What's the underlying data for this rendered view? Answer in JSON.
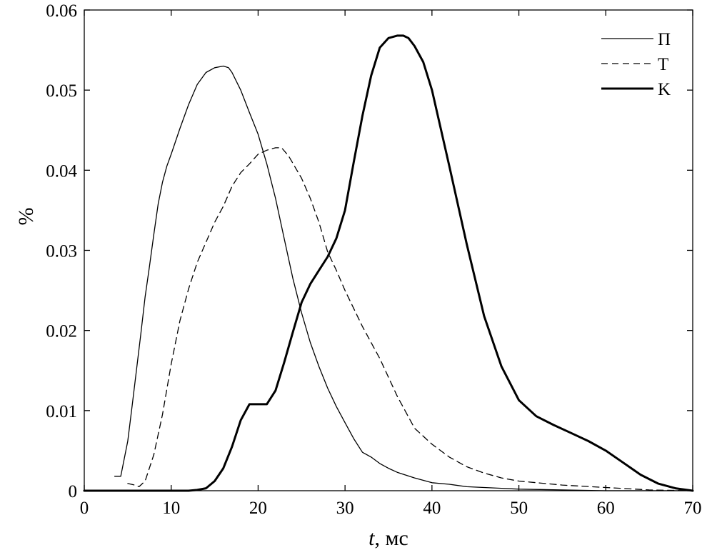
{
  "chart_data": {
    "type": "line",
    "title": "",
    "xlabel_italic": "t",
    "xlabel_rest": ", мс",
    "ylabel": "%",
    "xlim": [
      0,
      70
    ],
    "ylim": [
      0,
      0.06
    ],
    "xticks": [
      0,
      10,
      20,
      30,
      40,
      50,
      60,
      70
    ],
    "xtick_labels": [
      "0",
      "10",
      "20",
      "30",
      "40",
      "50",
      "60",
      "70"
    ],
    "yticks": [
      0,
      0.01,
      0.02,
      0.03,
      0.04,
      0.05,
      0.06
    ],
    "ytick_labels": [
      "0",
      "0.01",
      "0.02",
      "0.03",
      "0.04",
      "0.05",
      "0.06"
    ],
    "grid": false,
    "legend_position": "top-right",
    "series": [
      {
        "name": "П",
        "style": "solid-thin",
        "x": [
          3.5,
          4.2,
          5,
          5.5,
          6,
          6.5,
          7,
          7.5,
          8,
          8.5,
          9,
          9.5,
          10,
          11,
          12,
          13,
          14,
          15,
          16,
          16.6,
          17,
          18,
          19,
          20,
          21,
          22,
          23,
          24,
          25,
          26,
          27,
          28,
          29,
          30,
          31,
          32,
          33,
          34,
          35,
          36,
          38,
          40,
          42,
          44,
          46,
          48,
          50,
          55,
          60,
          70
        ],
        "y": [
          0.0018,
          0.0018,
          0.0062,
          0.0105,
          0.015,
          0.0195,
          0.0242,
          0.028,
          0.032,
          0.0358,
          0.0385,
          0.0405,
          0.042,
          0.0452,
          0.0482,
          0.0507,
          0.0522,
          0.0528,
          0.053,
          0.0528,
          0.0522,
          0.05,
          0.0472,
          0.0445,
          0.0408,
          0.0365,
          0.0315,
          0.0265,
          0.0222,
          0.0185,
          0.0155,
          0.0128,
          0.0105,
          0.0085,
          0.0065,
          0.0048,
          0.0042,
          0.0034,
          0.0028,
          0.0023,
          0.0016,
          0.001,
          0.0008,
          0.0005,
          0.0004,
          0.0003,
          0.0002,
          0.0001,
          0.0,
          0.0
        ]
      },
      {
        "name": "T",
        "style": "dashed",
        "x": [
          5,
          5.8,
          6.3,
          7,
          8,
          9,
          10,
          11,
          12,
          13,
          14,
          15,
          16,
          17,
          18,
          19,
          20,
          21,
          22,
          22.7,
          23.5,
          25,
          26,
          27,
          28,
          29,
          30,
          32,
          34,
          36,
          38,
          40,
          42,
          44,
          46,
          48,
          50,
          55,
          60,
          65,
          70
        ],
        "y": [
          0.0009,
          0.0007,
          0.0005,
          0.0012,
          0.0045,
          0.0095,
          0.0158,
          0.0212,
          0.0252,
          0.0285,
          0.031,
          0.0335,
          0.0355,
          0.038,
          0.0397,
          0.0408,
          0.042,
          0.0425,
          0.0428,
          0.0428,
          0.0418,
          0.039,
          0.0365,
          0.0335,
          0.0298,
          0.0275,
          0.025,
          0.0205,
          0.0165,
          0.0118,
          0.0078,
          0.0058,
          0.0042,
          0.003,
          0.0022,
          0.0016,
          0.0012,
          0.0007,
          0.0004,
          0.0001,
          0.0
        ]
      },
      {
        "name": "K",
        "style": "solid-thick",
        "x": [
          0,
          12,
          13,
          14,
          15,
          16,
          17,
          18,
          19,
          20,
          21,
          22,
          23,
          24,
          25,
          26,
          27,
          28,
          29,
          30,
          31,
          32,
          33,
          34,
          35,
          36,
          36.7,
          37.3,
          38,
          39,
          40,
          42,
          44,
          46,
          48,
          50,
          52,
          54,
          56,
          58,
          60,
          62,
          64,
          66,
          68,
          70
        ],
        "y": [
          0.0,
          0.0,
          0.0001,
          0.0003,
          0.0012,
          0.0028,
          0.0055,
          0.0088,
          0.0108,
          0.0108,
          0.0108,
          0.0125,
          0.016,
          0.0198,
          0.0235,
          0.0258,
          0.0275,
          0.0292,
          0.0315,
          0.035,
          0.041,
          0.0468,
          0.0518,
          0.0553,
          0.0565,
          0.0568,
          0.0568,
          0.0565,
          0.0555,
          0.0535,
          0.05,
          0.0405,
          0.0308,
          0.0218,
          0.0155,
          0.0113,
          0.0093,
          0.0082,
          0.0072,
          0.0062,
          0.005,
          0.0035,
          0.002,
          0.0009,
          0.0003,
          0.0
        ]
      }
    ]
  }
}
